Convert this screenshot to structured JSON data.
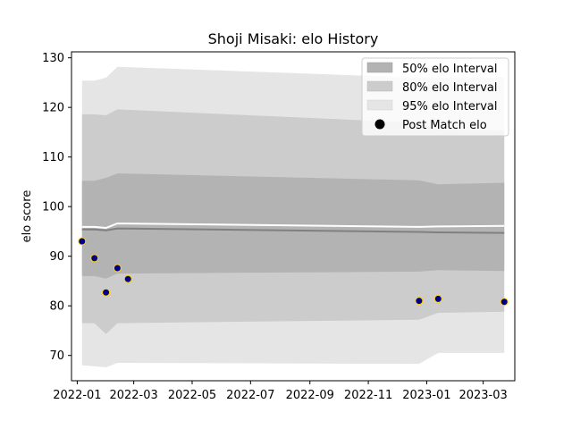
{
  "chart_data": {
    "type": "area",
    "title": "Shoji Misaki: elo History",
    "xlabel": "",
    "ylabel": "elo score",
    "xlim": [
      "2021-12-26",
      "2023-04-03"
    ],
    "ylim": [
      64.9,
      131.2
    ],
    "x_ticks": [
      "2022-01",
      "2022-03",
      "2022-05",
      "2022-07",
      "2022-09",
      "2022-11",
      "2023-01",
      "2023-03"
    ],
    "y_ticks": [
      70,
      80,
      90,
      100,
      110,
      120,
      130
    ],
    "legend_position": "top-right",
    "legend": {
      "i50": "50% elo Interval",
      "i80": "80% elo Interval",
      "i95": "95% elo Interval",
      "pts": "Post Match elo"
    },
    "band_dates": [
      "2022-01-06",
      "2022-01-19",
      "2022-01-31",
      "2022-02-12",
      "2022-12-24",
      "2023-01-13",
      "2023-03-23"
    ],
    "bands": {
      "i95": {
        "lower": [
          68.0,
          67.8,
          67.6,
          68.5,
          68.3,
          70.5,
          70.5
        ],
        "upper": [
          125.4,
          125.4,
          126.0,
          128.2,
          126.0,
          126.0,
          126.0
        ]
      },
      "i80": {
        "lower": [
          76.5,
          76.5,
          74.3,
          76.5,
          77.2,
          78.6,
          78.8
        ],
        "upper": [
          118.6,
          118.6,
          118.4,
          119.6,
          116.9,
          115.6,
          115.3
        ]
      },
      "i50": {
        "lower": [
          86.0,
          86.0,
          85.5,
          86.5,
          86.9,
          87.2,
          87.0
        ],
        "upper": [
          105.2,
          105.2,
          105.8,
          106.7,
          105.3,
          104.5,
          104.8
        ]
      }
    },
    "lines": {
      "mean": {
        "color": "#ffffff",
        "values": [
          95.9,
          95.9,
          95.7,
          96.6,
          95.9,
          96.0,
          96.1
        ]
      },
      "median": {
        "color": "#808080",
        "values": [
          95.4,
          95.4,
          95.2,
          95.6,
          94.9,
          94.8,
          94.7
        ]
      }
    },
    "points": [
      {
        "x": "2022-01-06",
        "y": 93.0
      },
      {
        "x": "2022-01-19",
        "y": 89.6
      },
      {
        "x": "2022-01-31",
        "y": 82.7
      },
      {
        "x": "2022-02-12",
        "y": 87.6
      },
      {
        "x": "2022-02-23",
        "y": 85.4
      },
      {
        "x": "2022-12-24",
        "y": 81.0
      },
      {
        "x": "2023-01-13",
        "y": 81.4
      },
      {
        "x": "2023-03-23",
        "y": 80.8
      }
    ],
    "colors": {
      "i50": "#b3b3b3",
      "i80": "#cccccc",
      "i95": "#e5e5e5",
      "point_fill": "#00008b",
      "point_edge": "#ffd700"
    }
  }
}
